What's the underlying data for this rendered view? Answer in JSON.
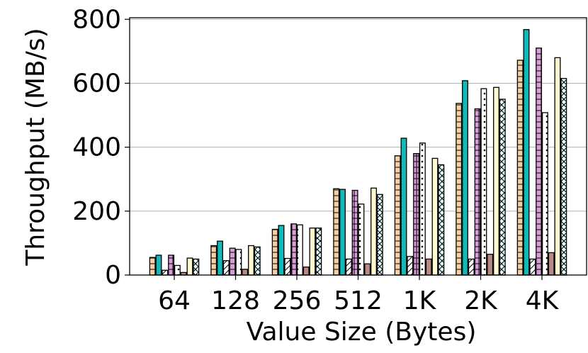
{
  "chart_data": {
    "type": "bar",
    "x_label": "Value Size (Bytes)",
    "y_label": "Throughput (MB/s)",
    "categories": [
      "64",
      "128",
      "256",
      "512",
      "1K",
      "2K",
      "4K"
    ],
    "series": [
      {
        "color": "#f7cfa5",
        "hatch": "-",
        "values": [
          55,
          92,
          143,
          270,
          373,
          537,
          672
        ]
      },
      {
        "color": "#12b9b9",
        "hatch": "",
        "values": [
          62,
          106,
          155,
          268,
          428,
          608,
          768
        ]
      },
      {
        "color": "#ffffff",
        "hatch": "/",
        "values": [
          15,
          45,
          52,
          50,
          58,
          50,
          50
        ]
      },
      {
        "color": "#d89cd8",
        "hatch": "+",
        "values": [
          62,
          84,
          160,
          265,
          380,
          520,
          710
        ]
      },
      {
        "color": "#ffffff",
        "hatch": ".",
        "values": [
          30,
          80,
          157,
          222,
          413,
          583,
          508
        ]
      },
      {
        "color": "#b88a84",
        "hatch": "",
        "values": [
          8,
          18,
          25,
          35,
          50,
          65,
          70
        ]
      },
      {
        "color": "#fffad0",
        "hatch": "",
        "values": [
          53,
          92,
          147,
          272,
          365,
          587,
          680
        ]
      },
      {
        "color": "#e0fbfb",
        "hatch": "x",
        "values": [
          50,
          88,
          147,
          252,
          345,
          550,
          615
        ]
      }
    ],
    "ylim": [
      0,
      805
    ],
    "yticks": [
      0,
      200,
      400,
      600,
      800
    ],
    "grid": true
  }
}
